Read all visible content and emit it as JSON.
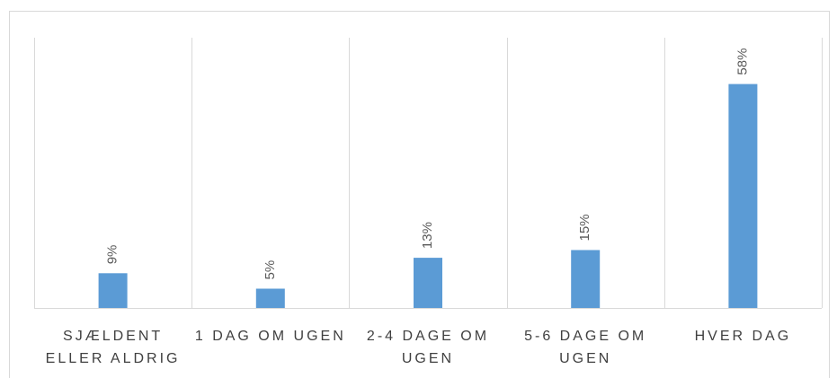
{
  "chart_data": {
    "type": "bar",
    "categories": [
      "SJÆLDENT ELLER ALDRIG",
      "1 DAG OM UGEN",
      "2-4 DAGE OM UGEN",
      "5-6 DAGE OM UGEN",
      "HVER DAG"
    ],
    "values": [
      9,
      5,
      13,
      15,
      58
    ],
    "value_labels": [
      "9%",
      "5%",
      "13%",
      "15%",
      "58%"
    ],
    "color": "#5b9bd5",
    "ylim": [
      0,
      70
    ]
  }
}
